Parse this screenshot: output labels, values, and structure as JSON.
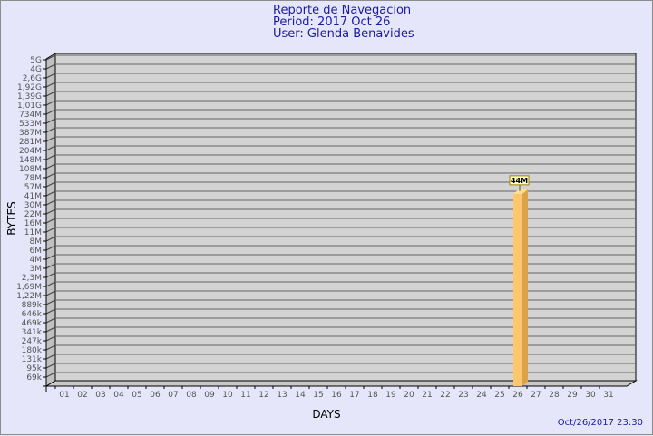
{
  "header": {
    "title": "Reporte de Navegacion",
    "period": "Period: 2017 Oct 26",
    "user": "User: Glenda Benavides"
  },
  "timestamp": "Oct/26/2017 23:30",
  "chart_data": {
    "type": "bar",
    "style": "3d",
    "xlabel": "DAYS",
    "ylabel": "BYTES",
    "y_scale": "log",
    "grid": true,
    "y_ticks": [
      "5G",
      "4G",
      "2,6G",
      "1,92G",
      "1,39G",
      "1,01G",
      "734M",
      "533M",
      "387M",
      "281M",
      "204M",
      "148M",
      "108M",
      "78M",
      "57M",
      "41M",
      "30M",
      "22M",
      "16M",
      "11M",
      "8M",
      "6M",
      "4M",
      "3M",
      "2,3M",
      "1,69M",
      "1,22M",
      "889k",
      "646k",
      "469k",
      "341k",
      "247k",
      "180k",
      "131k",
      "95k",
      "69k"
    ],
    "categories": [
      "01",
      "02",
      "03",
      "04",
      "05",
      "06",
      "07",
      "08",
      "09",
      "10",
      "11",
      "12",
      "13",
      "14",
      "15",
      "16",
      "17",
      "18",
      "19",
      "20",
      "21",
      "22",
      "23",
      "24",
      "25",
      "26",
      "27",
      "28",
      "29",
      "30",
      "31"
    ],
    "bars": [
      {
        "day": "26",
        "value": 44000000,
        "label": "44M"
      }
    ],
    "colors": {
      "bar": "#ffc66e",
      "bar_side": "#dba24a",
      "bar_top": "#ffe08a",
      "wall": "#d3d3d3",
      "label_bg": "#ffffc0"
    }
  }
}
